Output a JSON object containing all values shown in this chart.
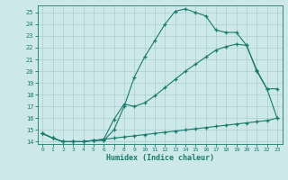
{
  "line1_x": [
    0,
    1,
    2,
    3,
    4,
    5,
    6,
    7,
    8,
    9,
    10,
    11,
    12,
    13,
    14,
    15,
    16,
    17,
    18,
    19,
    20,
    21,
    22,
    23
  ],
  "line1_y": [
    14.7,
    14.3,
    14.0,
    14.0,
    14.0,
    14.1,
    14.1,
    15.0,
    17.0,
    19.5,
    21.2,
    22.6,
    24.0,
    25.1,
    25.3,
    25.0,
    24.7,
    23.5,
    23.3,
    23.3,
    22.2,
    20.1,
    18.5,
    18.5
  ],
  "line2_x": [
    0,
    1,
    2,
    3,
    4,
    5,
    6,
    7,
    8,
    9,
    10,
    11,
    12,
    13,
    14,
    15,
    16,
    17,
    18,
    19,
    20,
    21,
    22,
    23
  ],
  "line2_y": [
    14.7,
    14.3,
    14.0,
    14.0,
    14.0,
    14.1,
    14.2,
    15.9,
    17.2,
    17.0,
    17.3,
    17.9,
    18.6,
    19.3,
    20.0,
    20.6,
    21.2,
    21.8,
    22.1,
    22.3,
    22.2,
    20.0,
    18.5,
    16.0
  ],
  "line3_x": [
    0,
    1,
    2,
    3,
    4,
    5,
    6,
    7,
    8,
    9,
    10,
    11,
    12,
    13,
    14,
    15,
    16,
    17,
    18,
    19,
    20,
    21,
    22,
    23
  ],
  "line3_y": [
    14.7,
    14.3,
    14.0,
    14.0,
    14.0,
    14.1,
    14.2,
    14.3,
    14.4,
    14.5,
    14.6,
    14.7,
    14.8,
    14.9,
    15.0,
    15.1,
    15.2,
    15.3,
    15.4,
    15.5,
    15.6,
    15.7,
    15.8,
    16.0
  ],
  "line_color": "#1a7a6e",
  "bg_color": "#cce8e8",
  "grid_color": "#aacfcf",
  "xlabel": "Humidex (Indice chaleur)",
  "xlim": [
    -0.5,
    23.5
  ],
  "ylim": [
    13.8,
    25.6
  ],
  "yticks": [
    14,
    15,
    16,
    17,
    18,
    19,
    20,
    21,
    22,
    23,
    24,
    25
  ],
  "xticks": [
    0,
    1,
    2,
    3,
    4,
    5,
    6,
    7,
    8,
    9,
    10,
    11,
    12,
    13,
    14,
    15,
    16,
    17,
    18,
    19,
    20,
    21,
    22,
    23
  ]
}
